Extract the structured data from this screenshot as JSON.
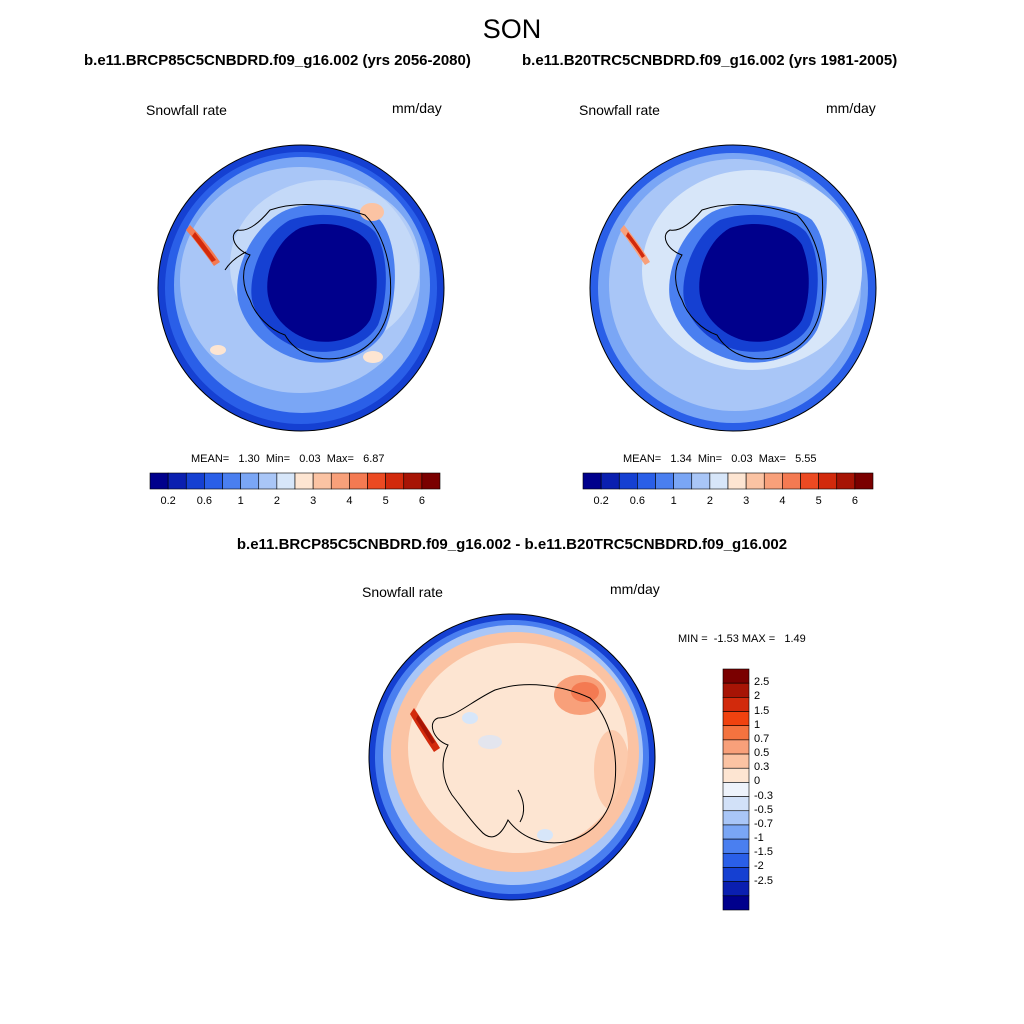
{
  "title": "SON",
  "panels": [
    {
      "run_title": "b.e11.BRCP85C5CNBDRD.f09_g16.002 (yrs 2056-2080)",
      "variable": "Snowfall rate",
      "units": "mm/day",
      "stats": "MEAN=   1.30  Min=   0.03  Max=   6.87"
    },
    {
      "run_title": "b.e11.B20TRC5CNBDRD.f09_g16.002 (yrs 1981-2005)",
      "variable": "Snowfall rate",
      "units": "mm/day",
      "stats": "MEAN=   1.34  Min=   0.03  Max=   5.55"
    }
  ],
  "difference": {
    "title": "b.e11.BRCP85C5CNBDRD.f09_g16.002 - b.e11.B20TRC5CNBDRD.f09_g16.002",
    "variable": "Snowfall rate",
    "units": "mm/day",
    "stats": "MIN =  -1.53 MAX =   1.49"
  },
  "colorbar_main": {
    "colors": [
      "#00008c",
      "#0a1fb0",
      "#1540d2",
      "#2a5fe8",
      "#4a7ff0",
      "#7aa6f5",
      "#a9c6f7",
      "#d7e6f9",
      "#fde5d2",
      "#fbc3a3",
      "#f8a07a",
      "#f47a52",
      "#ec4a22",
      "#d22a0c",
      "#a71405",
      "#7a0000"
    ],
    "tick_labels": [
      "0.2",
      "0.6",
      "1",
      "2",
      "3",
      "4",
      "5",
      "6"
    ]
  },
  "colorbar_diff": {
    "colors": [
      "#7a0000",
      "#a71405",
      "#d22a0c",
      "#f0420f",
      "#f4733f",
      "#f8a07a",
      "#fbc3a3",
      "#fde5d2",
      "#eef3fb",
      "#d2e1f8",
      "#a9c6f7",
      "#7aa6f5",
      "#4a7ff0",
      "#2a5fe8",
      "#1540d2",
      "#0a1fb0",
      "#00008c"
    ],
    "tick_labels": [
      "2.5",
      "2",
      "1.5",
      "1",
      "0.7",
      "0.5",
      "0.3",
      "0",
      "-0.3",
      "-0.5",
      "-0.7",
      "-1",
      "-1.5",
      "-2",
      "-2.5"
    ]
  },
  "map_colors": {
    "deep_blue": "#00008c",
    "blue": "#1540d2",
    "mid_blue": "#4a7ff0",
    "light_blue": "#a9c6f7",
    "pale_blue": "#d7e6f9",
    "peach": "#fde5d2",
    "salmon": "#f8a07a",
    "red": "#d22a0c"
  }
}
